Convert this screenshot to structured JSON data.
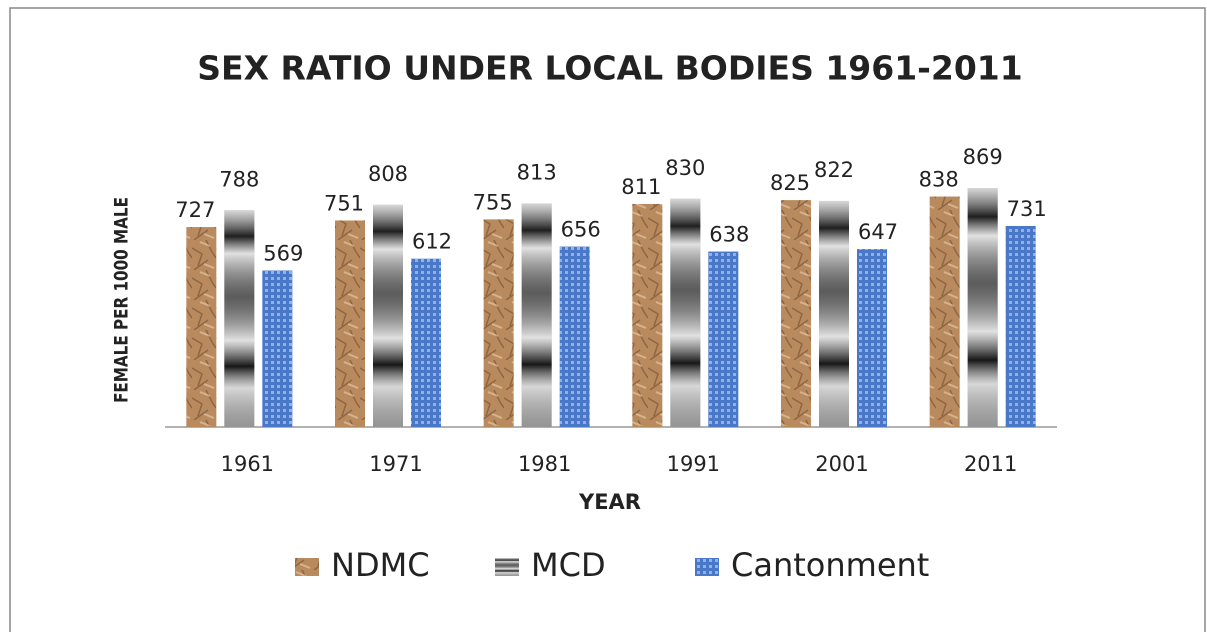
{
  "chart_data": {
    "type": "bar",
    "title": "SEX RATIO UNDER LOCAL BODIES 1961-2011",
    "xlabel": "YEAR",
    "ylabel": "FEMALE PER 1000 MALE",
    "categories": [
      "1961",
      "1971",
      "1981",
      "1991",
      "2001",
      "2011"
    ],
    "series": [
      {
        "name": "NDMC",
        "color": "#b98a5e",
        "values": [
          727,
          751,
          755,
          811,
          825,
          838
        ]
      },
      {
        "name": "MCD",
        "color": "#9a9a9a",
        "values": [
          788,
          808,
          813,
          830,
          822,
          869
        ]
      },
      {
        "name": "Cantonment",
        "color": "#4a78c8",
        "values": [
          569,
          612,
          656,
          638,
          647,
          731
        ]
      }
    ],
    "ylim": [
      0,
      1000
    ],
    "legend": "bottom"
  }
}
